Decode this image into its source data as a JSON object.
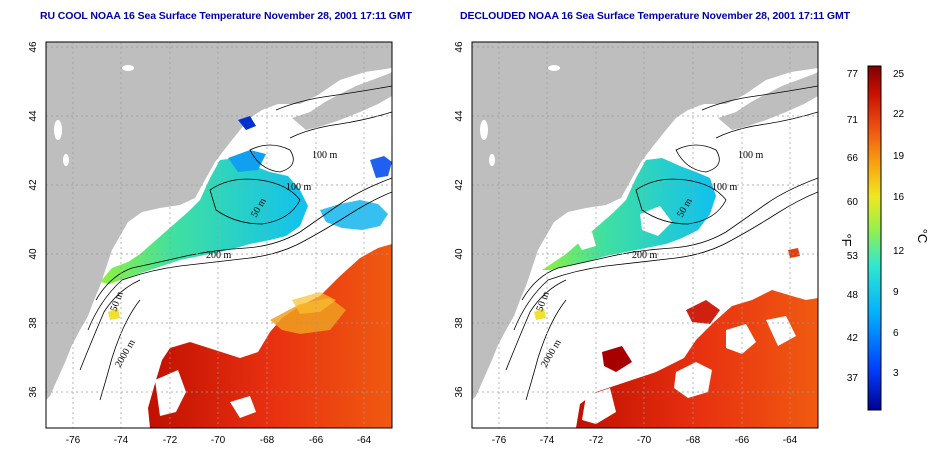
{
  "map1": {
    "title": "RU COOL NOAA 16 Sea Surface Temperature November 28, 2001 17:11 GMT",
    "xticks": [
      "-76",
      "-74",
      "-72",
      "-70",
      "-68",
      "-66",
      "-64"
    ],
    "yticks": [
      "46",
      "44",
      "42",
      "40",
      "38",
      "36"
    ],
    "contours": [
      "100 m",
      "100 m",
      "50 m",
      "200 m",
      "50 m",
      "2000 m"
    ]
  },
  "map2": {
    "title": "DECLOUDED NOAA 16 Sea Surface Temperature November 28, 2001 17:11 GMT",
    "xticks": [
      "-76",
      "-74",
      "-72",
      "-70",
      "-68",
      "-66",
      "-64"
    ],
    "yticks": [
      "46",
      "44",
      "42",
      "40",
      "38",
      "36"
    ],
    "contours": [
      "100 m",
      "100 m",
      "50 m",
      "200 m",
      "50 m",
      "2000 m"
    ]
  },
  "colorbar": {
    "f_unit": "°F",
    "c_unit": "°C",
    "f_ticks": [
      "77",
      "71",
      "66",
      "60",
      "53",
      "48",
      "42",
      "37"
    ],
    "c_ticks": [
      "25",
      "22",
      "19",
      "16",
      "12",
      "9",
      "6",
      "3"
    ],
    "colors": [
      "#0000a0",
      "#0030ff",
      "#0090ff",
      "#00e0f0",
      "#40f0b0",
      "#a0f040",
      "#f0e020",
      "#f8a010",
      "#f06010",
      "#e02010",
      "#b00000",
      "#800000"
    ]
  }
}
